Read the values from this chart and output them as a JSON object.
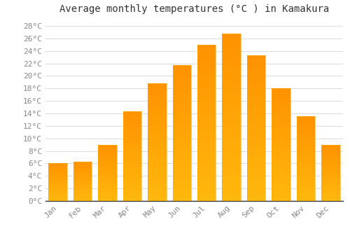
{
  "title": "Average monthly temperatures (°C ) in Kamakura",
  "months": [
    "Jan",
    "Feb",
    "Mar",
    "Apr",
    "May",
    "Jun",
    "Jul",
    "Aug",
    "Sep",
    "Oct",
    "Nov",
    "Dec"
  ],
  "temperatures": [
    6.1,
    6.3,
    9.0,
    14.3,
    18.8,
    21.7,
    25.0,
    26.8,
    23.3,
    18.0,
    13.5,
    9.0
  ],
  "bar_color_bottom": "#FFC000",
  "bar_color_top": "#FFA000",
  "bar_edge_color": "#FFAA00",
  "ylim_max": 29,
  "background_color": "#ffffff",
  "grid_color": "#dddddd",
  "title_fontsize": 10,
  "tick_fontsize": 8,
  "font_family": "monospace",
  "tick_color": "#888888",
  "title_color": "#333333",
  "spine_color": "#333333"
}
